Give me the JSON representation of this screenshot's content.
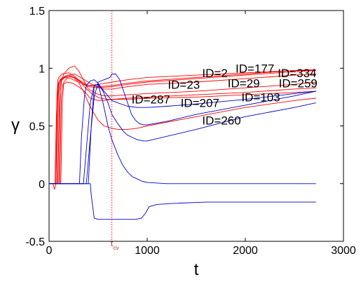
{
  "chart_data": {
    "type": "line",
    "xlabel": "t",
    "ylabel": "γ",
    "xlim": [
      0,
      3000
    ],
    "ylim": [
      -0.5,
      1.5
    ],
    "xticks": [
      "0",
      "1000",
      "2000",
      "3000"
    ],
    "yticks": [
      "-0.5",
      "0",
      "0.5",
      "1",
      "1.5"
    ],
    "grid": false,
    "vline": {
      "x": 640,
      "label_main": "t",
      "label_sub": "cv",
      "color": "#ff0000",
      "style": "dotted"
    },
    "series_colors": {
      "red": "#ff0000",
      "blue": "#0000cc"
    },
    "series": [
      {
        "color": "red",
        "x": [
          0,
          40,
          55,
          70,
          80,
          90,
          100,
          110,
          130,
          200,
          260,
          300,
          350,
          400,
          500,
          640,
          800,
          1000,
          1500,
          2000,
          2500,
          2720
        ],
        "y": [
          0,
          0,
          -0.05,
          0,
          0.75,
          0.9,
          0.92,
          0.93,
          0.95,
          0.96,
          0.93,
          0.9,
          0.86,
          0.84,
          0.83,
          0.84,
          0.86,
          0.88,
          0.91,
          0.94,
          0.97,
          0.98
        ]
      },
      {
        "color": "red",
        "x": [
          0,
          60,
          75,
          90,
          100,
          130,
          180,
          250,
          300,
          400,
          500,
          640,
          800,
          1000,
          1500,
          2000,
          2500,
          2720
        ],
        "y": [
          0,
          0,
          0.6,
          0.85,
          0.88,
          0.9,
          0.93,
          0.92,
          0.9,
          0.85,
          0.84,
          0.85,
          0.87,
          0.89,
          0.92,
          0.95,
          0.98,
          0.99
        ]
      },
      {
        "color": "red",
        "x": [
          0,
          70,
          85,
          100,
          120,
          160,
          220,
          300,
          400,
          500,
          640,
          800,
          1000,
          1500,
          2000,
          2500,
          2720
        ],
        "y": [
          0,
          0,
          0.7,
          0.88,
          0.9,
          0.92,
          0.91,
          0.88,
          0.85,
          0.86,
          0.88,
          0.9,
          0.92,
          0.94,
          0.96,
          0.98,
          0.98
        ]
      },
      {
        "color": "red",
        "x": [
          0,
          80,
          95,
          110,
          140,
          200,
          260,
          320,
          400,
          480,
          560,
          640,
          800,
          1000,
          1500,
          2000,
          2500,
          2720
        ],
        "y": [
          0,
          0,
          0.75,
          0.9,
          0.92,
          0.94,
          0.95,
          0.92,
          0.88,
          0.84,
          0.82,
          0.82,
          0.84,
          0.86,
          0.88,
          0.91,
          0.94,
          0.95
        ]
      },
      {
        "color": "red",
        "x": [
          0,
          90,
          105,
          120,
          150,
          200,
          260,
          300,
          350,
          400,
          480,
          560,
          640,
          800,
          1000,
          1500,
          2000,
          2500,
          2720
        ],
        "y": [
          0,
          0,
          0.7,
          0.88,
          0.95,
          1.0,
          1.02,
          0.98,
          0.9,
          0.82,
          0.78,
          0.76,
          0.76,
          0.77,
          0.78,
          0.8,
          0.83,
          0.86,
          0.88
        ]
      },
      {
        "color": "red",
        "x": [
          0,
          100,
          115,
          130,
          160,
          200,
          260,
          320,
          380,
          450,
          520,
          600,
          640,
          800,
          1000,
          1500,
          2000,
          2500,
          2720
        ],
        "y": [
          0,
          0,
          0.8,
          0.9,
          0.93,
          0.94,
          0.92,
          0.88,
          0.82,
          0.77,
          0.74,
          0.73,
          0.73,
          0.73,
          0.74,
          0.75,
          0.77,
          0.79,
          0.8
        ]
      },
      {
        "color": "red",
        "x": [
          0,
          110,
          125,
          140,
          180,
          240,
          300,
          360,
          420,
          500,
          560,
          640,
          800,
          1000,
          1500,
          2000,
          2500,
          2720
        ],
        "y": [
          0,
          0,
          0.75,
          0.86,
          0.88,
          0.87,
          0.84,
          0.8,
          0.74,
          0.72,
          0.72,
          0.73,
          0.74,
          0.75,
          0.77,
          0.79,
          0.82,
          0.83
        ]
      },
      {
        "color": "red",
        "x": [
          0,
          120,
          135,
          150,
          200,
          250,
          300,
          350,
          400,
          450,
          500,
          560,
          640,
          700,
          800,
          900,
          1000,
          1500,
          2000,
          2500,
          2720
        ],
        "y": [
          0,
          0,
          0.7,
          0.88,
          0.93,
          0.92,
          0.88,
          0.8,
          0.7,
          0.62,
          0.55,
          0.5,
          0.48,
          0.47,
          0.47,
          0.48,
          0.5,
          0.58,
          0.66,
          0.72,
          0.74
        ]
      },
      {
        "color": "blue",
        "x": [
          0,
          310,
          330,
          360,
          380,
          420,
          460,
          500,
          560,
          640,
          700,
          800,
          900,
          1000,
          1200,
          1500,
          2000,
          2500,
          2720
        ],
        "y": [
          0,
          0,
          0.4,
          0.75,
          0.85,
          0.89,
          0.9,
          0.87,
          0.8,
          0.72,
          0.7,
          0.67,
          0.66,
          0.66,
          0.67,
          0.69,
          0.73,
          0.78,
          0.8
        ]
      },
      {
        "color": "blue",
        "x": [
          0,
          350,
          380,
          420,
          460,
          500,
          550,
          600,
          640,
          700,
          760,
          800,
          850,
          900,
          960,
          1000,
          1500,
          2000,
          2500,
          2720
        ],
        "y": [
          0,
          0,
          0.3,
          0.7,
          0.85,
          0.86,
          0.8,
          0.7,
          0.6,
          0.52,
          0.45,
          0.42,
          0.4,
          0.38,
          0.37,
          0.37,
          0.47,
          0.58,
          0.66,
          0.7
        ]
      },
      {
        "color": "blue",
        "x": [
          0,
          380,
          420,
          460,
          500,
          560,
          620,
          640,
          680,
          720,
          760,
          800,
          840,
          880,
          920,
          960,
          1000,
          1200,
          1500,
          2000,
          2500,
          2720
        ],
        "y": [
          0,
          0,
          0.4,
          0.75,
          0.88,
          0.9,
          0.92,
          0.95,
          0.95,
          0.9,
          0.8,
          0.7,
          0.6,
          0.55,
          0.52,
          0.51,
          0.51,
          0.54,
          0.6,
          0.68,
          0.76,
          0.8
        ]
      },
      {
        "color": "blue",
        "x": [
          0,
          400,
          430,
          460,
          500,
          550,
          600,
          640,
          700,
          750,
          800,
          850,
          900,
          950,
          1000,
          1200,
          1500,
          2000,
          2500,
          2720
        ],
        "y": [
          0,
          0,
          0.5,
          0.85,
          0.86,
          0.7,
          0.5,
          0.38,
          0.25,
          0.16,
          0.1,
          0.06,
          0.04,
          0.02,
          0.01,
          0,
          0,
          0,
          0,
          0
        ]
      },
      {
        "color": "blue",
        "x": [
          0,
          420,
          430,
          460,
          500,
          560,
          600,
          640,
          700,
          800,
          880,
          940,
          980,
          1020,
          1100,
          1300,
          1600,
          2000,
          2400,
          2720
        ],
        "y": [
          0,
          0,
          -0.1,
          -0.3,
          -0.31,
          -0.31,
          -0.31,
          -0.31,
          -0.31,
          -0.31,
          -0.31,
          -0.3,
          -0.26,
          -0.2,
          -0.18,
          -0.17,
          -0.16,
          -0.16,
          -0.16,
          -0.16
        ]
      }
    ],
    "annotations": [
      {
        "text": "ID=2",
        "x": 1560,
        "y": 0.96
      },
      {
        "text": "ID=177",
        "x": 1900,
        "y": 1.0
      },
      {
        "text": "ID=334",
        "x": 2330,
        "y": 0.96
      },
      {
        "text": "ID=23",
        "x": 1210,
        "y": 0.86
      },
      {
        "text": "ID=29",
        "x": 1820,
        "y": 0.87
      },
      {
        "text": "ID=259",
        "x": 2340,
        "y": 0.87
      },
      {
        "text": "ID=287",
        "x": 840,
        "y": 0.73
      },
      {
        "text": "ID=207",
        "x": 1340,
        "y": 0.7
      },
      {
        "text": "ID=103",
        "x": 1960,
        "y": 0.75
      },
      {
        "text": "ID=260",
        "x": 1560,
        "y": 0.55
      }
    ]
  }
}
